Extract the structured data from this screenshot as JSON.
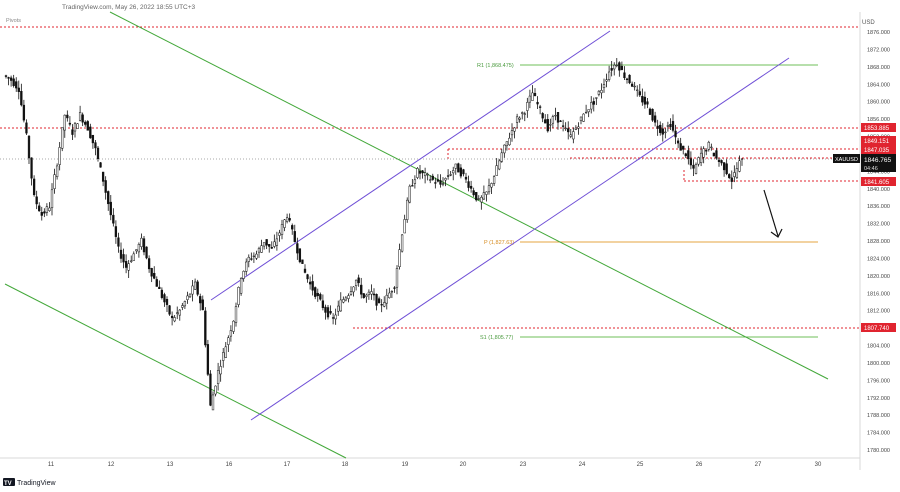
{
  "header": {
    "source_line": "TradingView.com, May 26, 2022 18:55 UTC+3"
  },
  "pivots_label": "Pivots",
  "brand": {
    "logo_text": "TradingView"
  },
  "price_axis": {
    "currency": "USD",
    "ticks": [
      "1876.000",
      "1872.000",
      "1868.000",
      "1864.000",
      "1860.000",
      "1856.000",
      "1852.000",
      "1848.000",
      "1844.000",
      "1840.000",
      "1836.000",
      "1832.000",
      "1828.000",
      "1824.000",
      "1820.000",
      "1816.000",
      "1812.000",
      "1808.000",
      "1804.000",
      "1800.000",
      "1796.000",
      "1792.000",
      "1788.000",
      "1784.000",
      "1780.000"
    ]
  },
  "time_axis": {
    "ticks": [
      "11",
      "12",
      "13",
      "16",
      "17",
      "18",
      "19",
      "20",
      "23",
      "24",
      "25",
      "26",
      "27",
      "30"
    ]
  },
  "pivot_labels": {
    "r1": "R1 (1,868.475)",
    "p": "P (1,827.63)",
    "s1": "S1 (1,805.77)"
  },
  "price_tags": [
    {
      "text": "1853.885",
      "color": "#e0242f"
    },
    {
      "text": "1849.151",
      "color": "#e0242f"
    },
    {
      "text": "1847.035",
      "color": "#e0242f"
    },
    {
      "text": "1841.605",
      "color": "#e0242f"
    },
    {
      "text": "1807.740",
      "color": "#e0242f"
    }
  ],
  "current_price": {
    "symbol": "XAUUSD",
    "price": "1846.765",
    "countdown": "04:46"
  },
  "colors": {
    "candle": "#111111",
    "trend_green": "#43a83a",
    "channel_purple": "#6f4fd6",
    "level_red": "#e0242f",
    "pivot_r1": "#6fbf5a",
    "pivot_p": "#e6a540",
    "pivot_s1": "#6fbf5a"
  },
  "chart_data": {
    "type": "candlestick",
    "symbol": "XAUUSD",
    "currency": "USD",
    "ylim": [
      1779,
      1878
    ],
    "x_dates": [
      "11",
      "12",
      "13",
      "16",
      "17",
      "18",
      "19",
      "20",
      "23",
      "24",
      "25",
      "26",
      "27",
      "30"
    ],
    "horizontal_levels": [
      1876.5,
      1853.885,
      1849.151,
      1847.035,
      1841.605,
      1807.74
    ],
    "pivots": {
      "R1": 1868.475,
      "P": 1827.63,
      "S1": 1805.77
    },
    "last_price": 1846.765,
    "close_series_sketch": [
      1865,
      1863,
      1852,
      1838,
      1834,
      1836,
      1846,
      1857,
      1853,
      1857,
      1854,
      1849,
      1842,
      1834,
      1826,
      1822,
      1825,
      1828,
      1822,
      1818,
      1814,
      1810,
      1812,
      1815,
      1818,
      1812,
      1790,
      1798,
      1804,
      1810,
      1820,
      1824,
      1825,
      1828,
      1826,
      1830,
      1834,
      1828,
      1822,
      1818,
      1815,
      1812,
      1810,
      1814,
      1816,
      1819,
      1815,
      1816,
      1813,
      1815,
      1818,
      1830,
      1840,
      1844,
      1843,
      1842,
      1841,
      1843,
      1845,
      1843,
      1840,
      1837,
      1839,
      1843,
      1848,
      1852,
      1856,
      1858,
      1862,
      1858,
      1854,
      1857,
      1854,
      1852,
      1855,
      1858,
      1860,
      1863,
      1867,
      1869,
      1866,
      1864,
      1861,
      1859,
      1855,
      1853,
      1855,
      1850,
      1848,
      1844,
      1848,
      1850,
      1847,
      1845,
      1842,
      1846,
      1847
    ]
  }
}
